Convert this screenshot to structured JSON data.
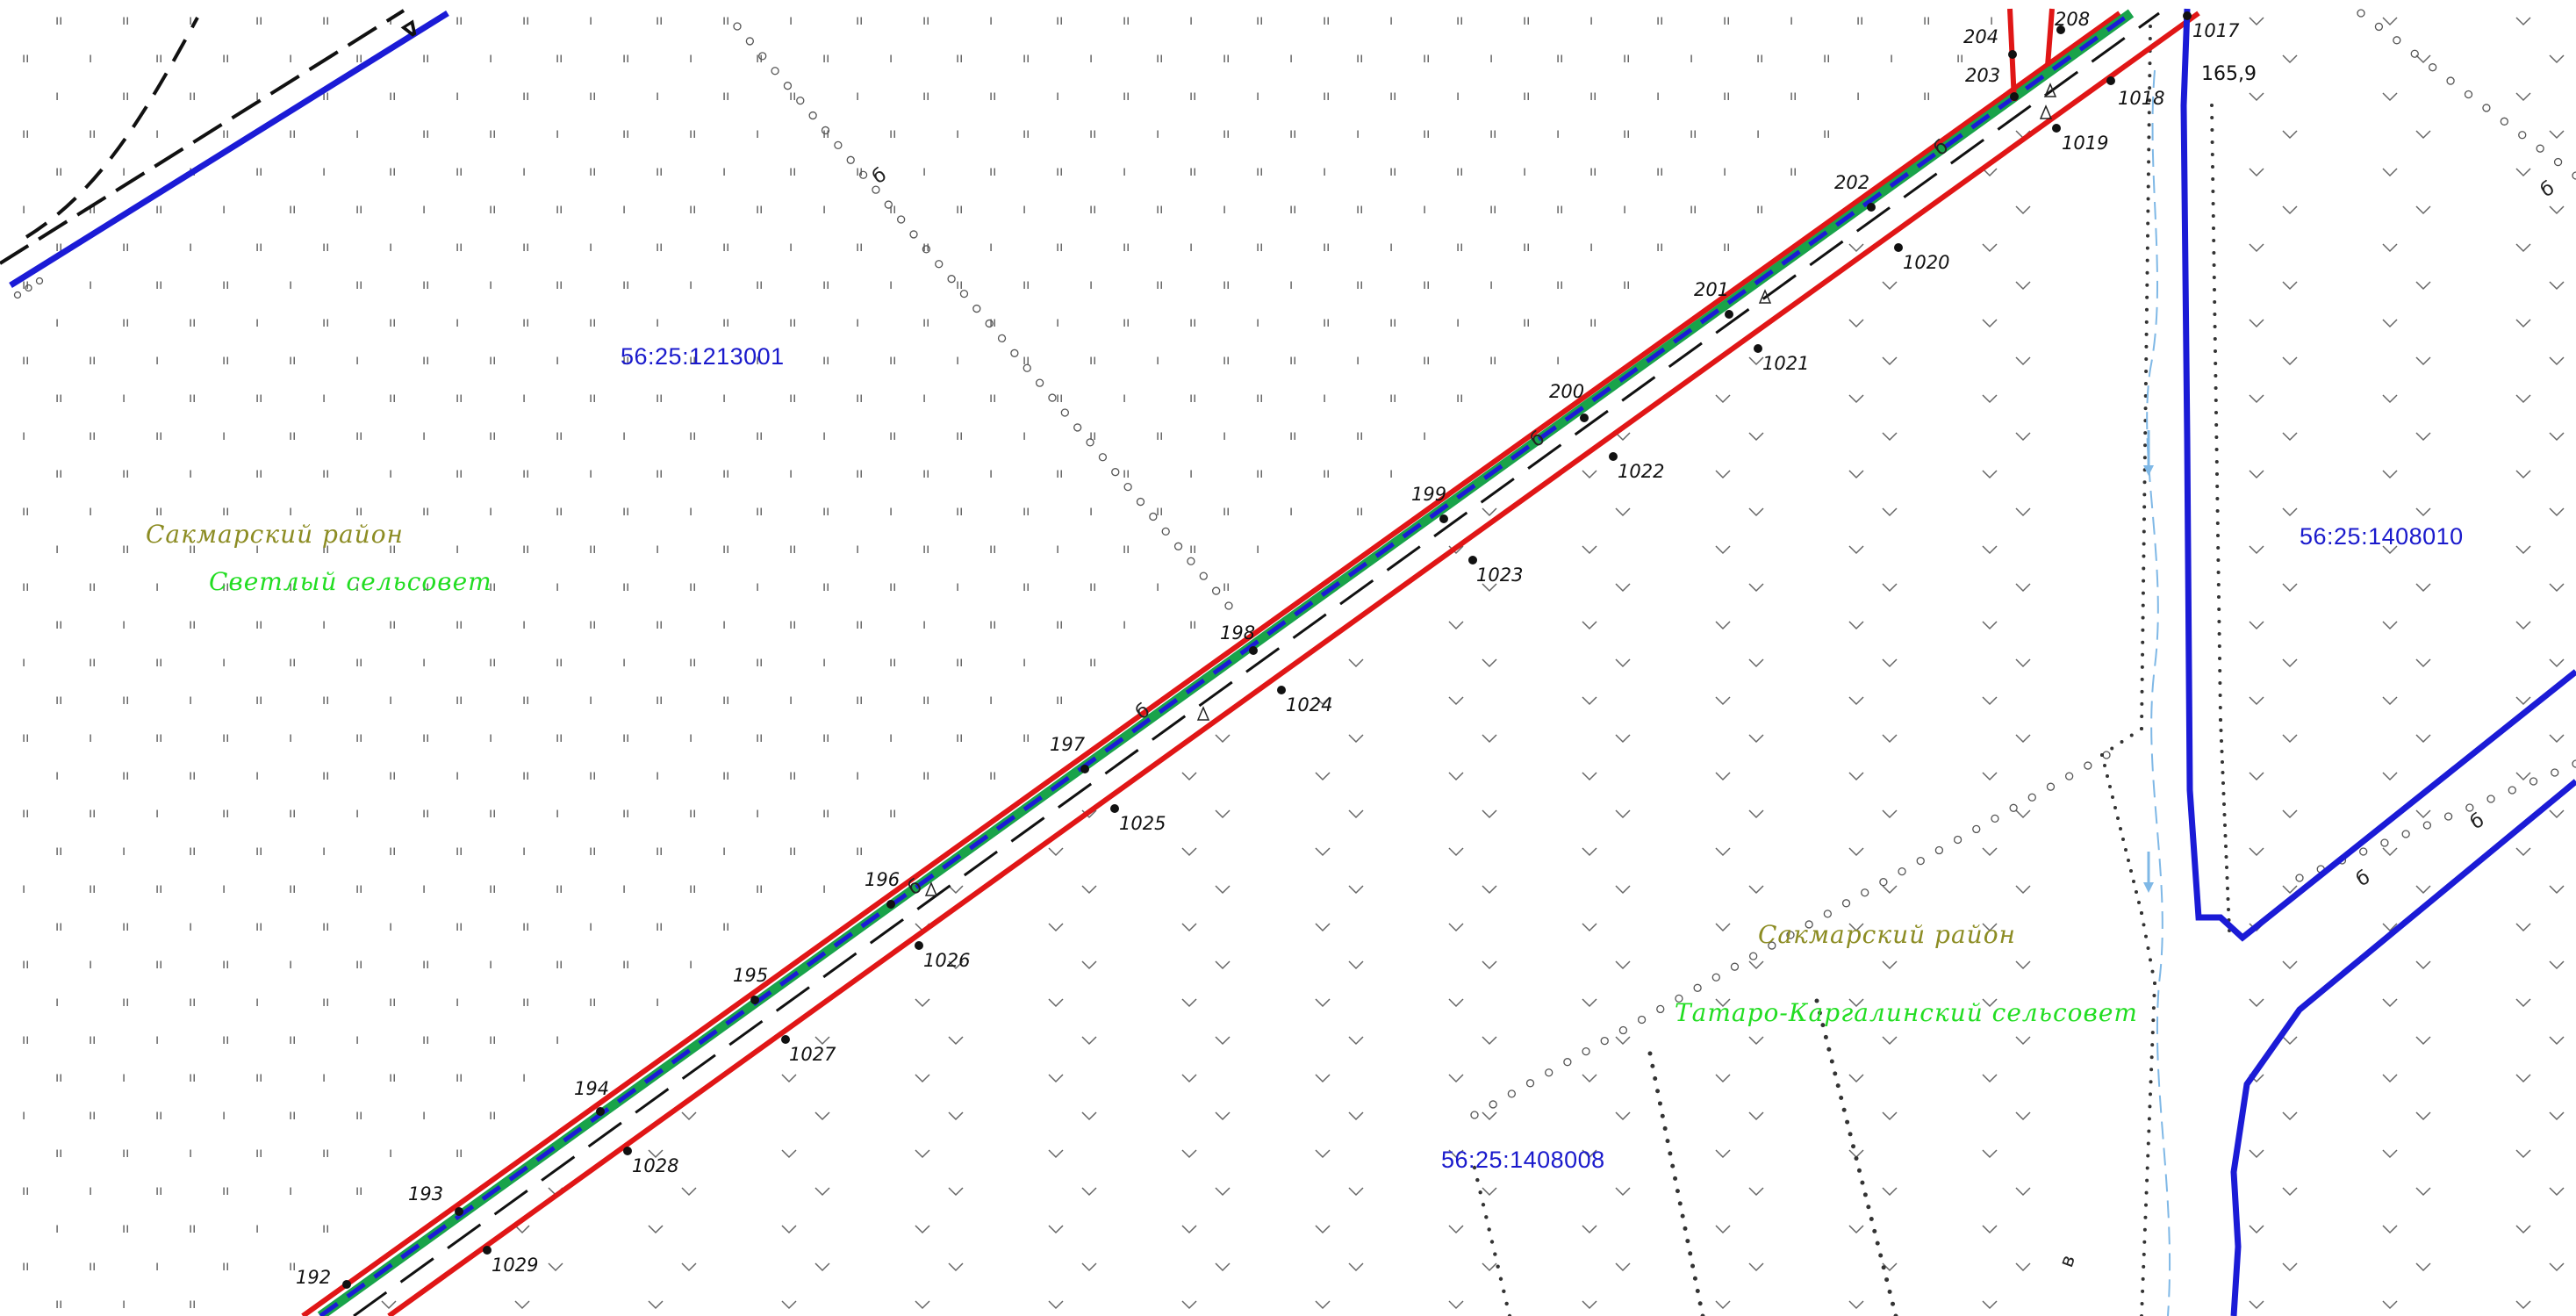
{
  "map": {
    "colors": {
      "background": "#ffffff",
      "boundary_red": "#e01616",
      "cadastral_blue": "#1b1bd6",
      "corridor_green": "#19a34a",
      "cadastral_text": "#1a1acc",
      "district_text": "#8c8c23",
      "selsovet_text": "#22dd22",
      "water": "#7fb8e6",
      "symbols": "#333333"
    },
    "labels": {
      "cadastral_left": "56:25:1213001",
      "cadastral_right": "56:25:1408010",
      "cadastral_bottom": "56:25:1408008",
      "district_left": "Сакмарский район",
      "selsovet_left": "Светлый сельсовет",
      "district_right": "Сакмарский район",
      "selsovet_right": "Татаро-Каргалинский сельсовет",
      "elevation": "165,9"
    },
    "upper_points": [
      "192",
      "193",
      "194",
      "195",
      "196",
      "197",
      "198",
      "199",
      "200",
      "201",
      "202",
      "203",
      "204",
      "208"
    ],
    "lower_points": [
      "1017",
      "1018",
      "1019",
      "1020",
      "1021",
      "1022",
      "1023",
      "1024",
      "1025",
      "1026",
      "1027",
      "1028",
      "1029"
    ]
  }
}
